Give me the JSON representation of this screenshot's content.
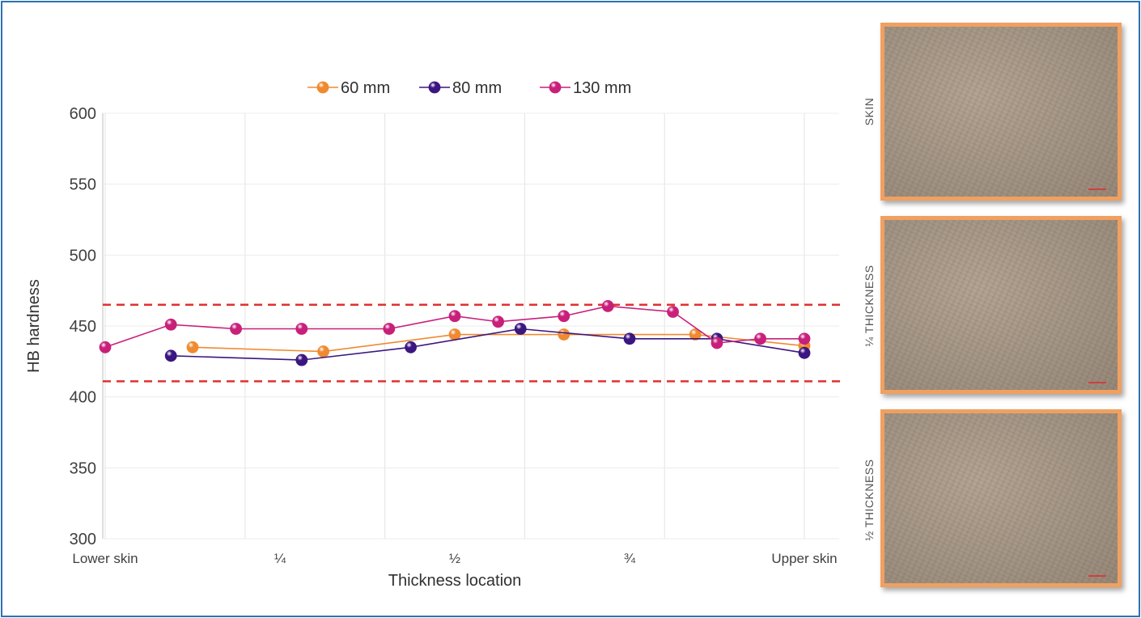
{
  "chart_data": {
    "type": "line",
    "xlabel": "Thickness location",
    "ylabel": "HB hardness",
    "ylim": [
      300,
      600
    ],
    "yticks": [
      300,
      350,
      400,
      450,
      500,
      550,
      600
    ],
    "xlim": [
      0,
      1
    ],
    "xticks": [
      {
        "label": "Lower skin",
        "x": 0.0
      },
      {
        "label": "¼",
        "x": 0.25
      },
      {
        "label": "½",
        "x": 0.5
      },
      {
        "label": "¾",
        "x": 0.75
      },
      {
        "label": "Upper skin",
        "x": 1.0
      }
    ],
    "grid": "vertical",
    "legend": "top",
    "reference_lines": [
      {
        "y": 465,
        "color": "#e03030",
        "style": "dashed"
      },
      {
        "y": 411,
        "color": "#e03030",
        "style": "dashed"
      }
    ],
    "series": [
      {
        "name": "60 mm",
        "color": "#f08a30",
        "points": [
          [
            0.125,
            435
          ],
          [
            0.312,
            432
          ],
          [
            0.5,
            444
          ],
          [
            0.656,
            444
          ],
          [
            0.844,
            444
          ],
          [
            1.0,
            436
          ]
        ]
      },
      {
        "name": "80 mm",
        "color": "#3b1680",
        "points": [
          [
            0.094,
            429
          ],
          [
            0.281,
            426
          ],
          [
            0.437,
            435
          ],
          [
            0.594,
            448
          ],
          [
            0.75,
            441
          ],
          [
            0.875,
            441
          ],
          [
            1.0,
            431
          ]
        ]
      },
      {
        "name": "130 mm",
        "color": "#c8207a",
        "points": [
          [
            0.0,
            435
          ],
          [
            0.094,
            451
          ],
          [
            0.187,
            448
          ],
          [
            0.281,
            448
          ],
          [
            0.406,
            448
          ],
          [
            0.5,
            457
          ],
          [
            0.562,
            453
          ],
          [
            0.656,
            457
          ],
          [
            0.719,
            464
          ],
          [
            0.812,
            460
          ],
          [
            0.875,
            438
          ],
          [
            0.937,
            441
          ],
          [
            1.0,
            441
          ]
        ]
      }
    ]
  },
  "micrographs": [
    {
      "label": "SKIN"
    },
    {
      "label": "¼ THICKNESS"
    },
    {
      "label": "½ THICKNESS"
    }
  ]
}
